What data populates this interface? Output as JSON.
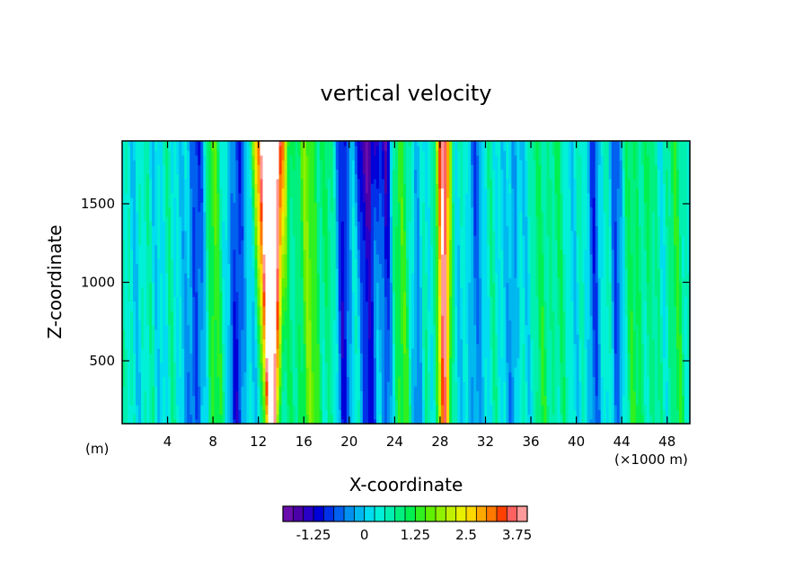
{
  "chart_data": {
    "type": "heatmap",
    "title": "vertical velocity",
    "xlabel": "X-coordinate",
    "ylabel": "Z-coordinate",
    "x_unit_left": "(m)",
    "x_unit_right": "(×1000 m)",
    "xlim": [
      0,
      50
    ],
    "ylim": [
      100,
      1900
    ],
    "x_ticks": [
      4,
      8,
      12,
      16,
      20,
      24,
      28,
      32,
      36,
      40,
      44,
      48
    ],
    "x_tick_labels": [
      "4",
      "8",
      "12",
      "16",
      "20",
      "24",
      "28",
      "32",
      "36",
      "40",
      "44",
      "48"
    ],
    "y_ticks": [
      500,
      1000,
      1500
    ],
    "y_tick_labels": [
      "500",
      "1000",
      "1500"
    ],
    "colorbar": {
      "levels": [
        -2,
        -1.75,
        -1.5,
        -1.25,
        -1,
        -0.75,
        -0.5,
        -0.25,
        0,
        0.25,
        0.5,
        0.75,
        1,
        1.25,
        1.5,
        1.75,
        2,
        2.25,
        2.5,
        2.75,
        3,
        3.25,
        3.5,
        3.75
      ],
      "tick_values": [
        -1.25,
        0,
        1.25,
        2.5,
        3.75
      ],
      "tick_labels": [
        "-1.25",
        "0",
        "1.25",
        "2.5",
        "3.75"
      ],
      "colors": [
        "#6a0dad",
        "#4b00a8",
        "#2800c8",
        "#0000d8",
        "#0030e8",
        "#0060f0",
        "#0090f0",
        "#00b8f0",
        "#00dcf0",
        "#00f0d8",
        "#00f0b0",
        "#00f080",
        "#00f050",
        "#30f020",
        "#60f000",
        "#90f000",
        "#c0f000",
        "#e8f000",
        "#ffd800",
        "#ffa800",
        "#ff7800",
        "#ff4000",
        "#ff6060",
        "#ff9a9a"
      ]
    }
  }
}
